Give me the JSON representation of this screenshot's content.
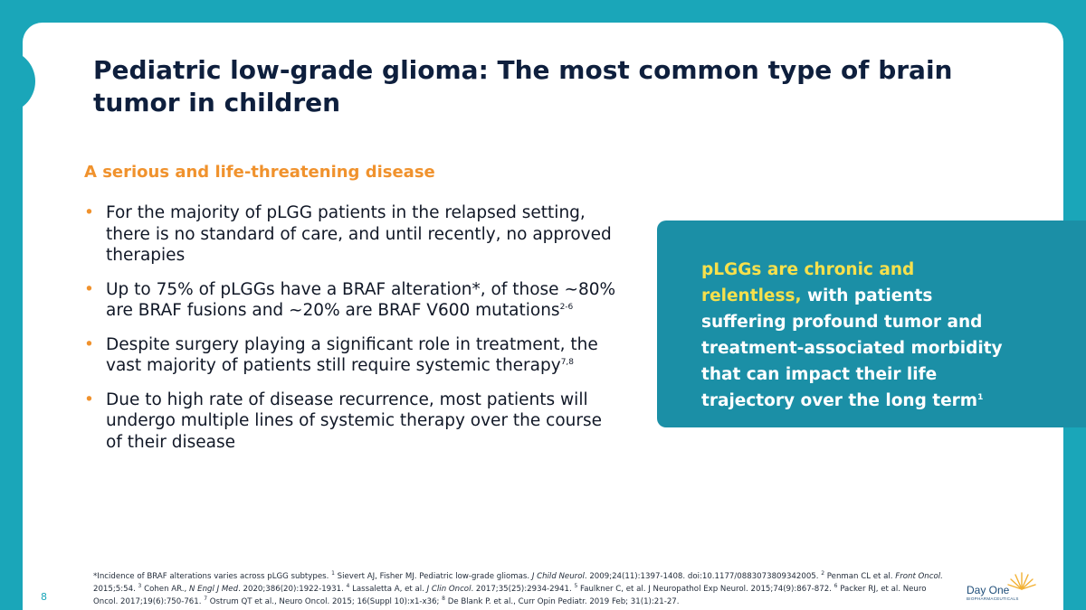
{
  "slide": {
    "title": "Pediatric low-grade glioma: The most common type of brain tumor in children",
    "subheading": "A serious and life-threatening disease",
    "bullets": [
      {
        "text": "For the majority of pLGG patients in the relapsed setting, there is no standard of care, and until recently, no approved therapies",
        "sup": ""
      },
      {
        "text": "Up to 75% of pLGGs have a BRAF alteration*, of those ~80% are BRAF fusions and ~20% are BRAF V600 mutations",
        "sup": "2-6"
      },
      {
        "text": "Despite surgery playing a significant role in treatment, the vast majority of patients still require systemic therapy",
        "sup": "7,8"
      },
      {
        "text": "Due to high rate of disease recurrence, most patients will undergo multiple lines of systemic therapy over the course of their disease",
        "sup": ""
      }
    ],
    "callout": {
      "highlight": "pLGGs are chronic and relentless,",
      "text": " with patients suffering profound tumor and treatment-associated morbidity that can impact their life trajectory over the long term",
      "sup": "1"
    },
    "footnote": {
      "intro": "*Incidence of BRAF alterations varies across pLGG subtypes. ",
      "refs": [
        {
          "n": "1",
          "text": " Sievert AJ, Fisher MJ. Pediatric low-grade gliomas. ",
          "em": "J Child Neurol",
          "rest": ". 2009;24(11):1397-1408. doi:10.1177/0883073809342005. "
        },
        {
          "n": "2",
          "text": " Penman CL et al. ",
          "em": "Front Oncol.",
          "rest": " 2015;5:54. "
        },
        {
          "n": "3",
          "text": " Cohen AR., ",
          "em": "N Engl J Med",
          "rest": ". 2020;386(20):1922-1931. "
        },
        {
          "n": "4",
          "text": " Lassaletta A, et al. ",
          "em": "J Clin Oncol",
          "rest": ". 2017;35(25):2934-2941. "
        },
        {
          "n": "5",
          "text": " Faulkner C, et al. J Neuropathol Exp Neurol. 2015;74(9):867-872. ",
          "em": "",
          "rest": ""
        },
        {
          "n": "6",
          "text": " Packer RJ, et al. Neuro Oncol. 2017;19(6):750-761. ",
          "em": "",
          "rest": ""
        },
        {
          "n": "7",
          "text": " Ostrum QT et al., Neuro Oncol. 2015; 16(Suppl 10):x1-x36; ",
          "em": "",
          "rest": ""
        },
        {
          "n": "8",
          "text": " De Blank P. et al., Curr Opin Pediatr. 2019 Feb; 31(1):21-27.",
          "em": "",
          "rest": ""
        }
      ]
    },
    "page_number": "8",
    "logo": {
      "name": "Day One",
      "sub": "BIOPHARMACEUTICALS"
    }
  },
  "colors": {
    "teal": "#1aa6b9",
    "callout": "#1b8fa6",
    "orange": "#f0922d",
    "yellow": "#f6e04c",
    "navy": "#0e1f3d"
  }
}
